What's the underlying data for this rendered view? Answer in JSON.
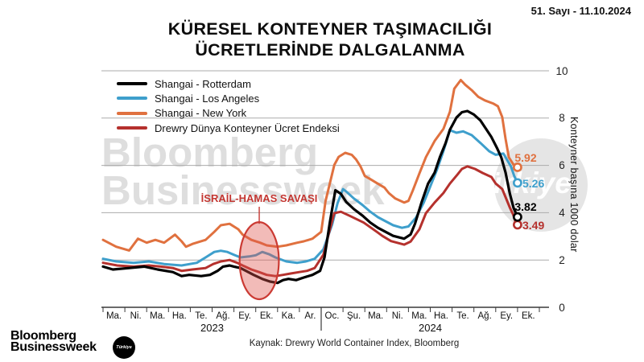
{
  "meta": {
    "issue": "51. Sayı - 11.10.2024"
  },
  "title": {
    "line1": "KÜRESEL KONTEYNER TAŞIMACILIĞI",
    "line2": "ÜCRETLERİNDE DALGALANMA"
  },
  "legend": [
    {
      "label": "Shangai - Rotterdam",
      "color": "#000000"
    },
    {
      "label": "Shangai - Los Angeles",
      "color": "#3E9FCC"
    },
    {
      "label": "Shangai - New York",
      "color": "#E0713F"
    },
    {
      "label": "Drewry Dünya Konteyner Ücret Endeksi",
      "color": "#B5312D"
    }
  ],
  "annotation": {
    "label": "İSRAİL-HAMAS SAVAŞI",
    "color": "#C43732",
    "x_month": 7.16,
    "y_value": 1.97,
    "rx_months": 0.9,
    "ry_values": 1.63
  },
  "y_axis": {
    "label": "Konteyner başına 1000 dolar",
    "ticks": [
      0,
      2,
      4,
      6,
      8,
      10
    ]
  },
  "x_axis": {
    "month_labels": [
      "Ma.",
      "Ni.",
      "Ma.",
      "Ha.",
      "Te.",
      "Ağ.",
      "Ey.",
      "Ek.",
      "Ka.",
      "Ar.",
      "Oc.",
      "Şu.",
      "Ma.",
      "Ni.",
      "Ma.",
      "Ha.",
      "Te.",
      "Ağ.",
      "Ey.",
      "Ek."
    ],
    "years": [
      "2023",
      "2024"
    ]
  },
  "watermark": {
    "line1": "Bloomberg",
    "line2": "Businessweek",
    "circle_text": "Türkiye"
  },
  "footer": {
    "source": "Kaynak: Drewry World Container Index, Bloomberg",
    "logo_line1": "Bloomberg",
    "logo_line2": "Businessweek",
    "logo_badge": "Türkiye"
  },
  "chart_data": {
    "type": "line",
    "x_unit": "months (0 = Mart 2023, 19 = Ekim 2024)",
    "ylim": [
      0,
      10
    ],
    "grid": true,
    "legend_position": "top-left",
    "series": [
      {
        "name": "Shangai - Rotterdam",
        "color": "#000000",
        "end_label": "3.82",
        "points": [
          [
            0,
            1.72
          ],
          [
            0.45,
            1.6
          ],
          [
            1.2,
            1.66
          ],
          [
            1.9,
            1.72
          ],
          [
            2.5,
            1.6
          ],
          [
            3.2,
            1.49
          ],
          [
            3.6,
            1.32
          ],
          [
            3.95,
            1.37
          ],
          [
            4.5,
            1.32
          ],
          [
            4.9,
            1.37
          ],
          [
            5.25,
            1.54
          ],
          [
            5.5,
            1.72
          ],
          [
            5.8,
            1.77
          ],
          [
            6.0,
            1.72
          ],
          [
            6.3,
            1.66
          ],
          [
            6.55,
            1.54
          ],
          [
            6.9,
            1.37
          ],
          [
            7.3,
            1.2
          ],
          [
            7.65,
            1.09
          ],
          [
            8.0,
            1.03
          ],
          [
            8.25,
            1.15
          ],
          [
            8.5,
            1.2
          ],
          [
            8.85,
            1.15
          ],
          [
            9.2,
            1.26
          ],
          [
            9.6,
            1.37
          ],
          [
            9.95,
            1.54
          ],
          [
            10.15,
            2.11
          ],
          [
            10.4,
            3.6
          ],
          [
            10.65,
            4.95
          ],
          [
            10.9,
            4.8
          ],
          [
            11.15,
            4.45
          ],
          [
            11.5,
            4.15
          ],
          [
            11.9,
            3.87
          ],
          [
            12.25,
            3.58
          ],
          [
            12.6,
            3.36
          ],
          [
            12.95,
            3.19
          ],
          [
            13.3,
            3.02
          ],
          [
            13.8,
            2.9
          ],
          [
            14.1,
            3.08
          ],
          [
            14.3,
            3.53
          ],
          [
            14.6,
            4.44
          ],
          [
            14.9,
            5.23
          ],
          [
            15.2,
            5.69
          ],
          [
            15.45,
            6.37
          ],
          [
            15.7,
            6.94
          ],
          [
            15.9,
            7.51
          ],
          [
            16.2,
            8.02
          ],
          [
            16.45,
            8.25
          ],
          [
            16.7,
            8.3
          ],
          [
            17.0,
            8.15
          ],
          [
            17.3,
            7.9
          ],
          [
            17.55,
            7.55
          ],
          [
            17.8,
            7.2
          ],
          [
            18.05,
            6.75
          ],
          [
            18.25,
            6.35
          ],
          [
            18.45,
            5.7
          ],
          [
            18.65,
            4.8
          ],
          [
            18.82,
            4.2
          ],
          [
            19.0,
            3.82
          ]
        ]
      },
      {
        "name": "Shangai - Los Angeles",
        "color": "#3E9FCC",
        "end_label": "5.26",
        "points": [
          [
            0,
            2.05
          ],
          [
            0.6,
            1.94
          ],
          [
            1.4,
            1.88
          ],
          [
            2.1,
            1.94
          ],
          [
            2.8,
            1.83
          ],
          [
            3.6,
            1.77
          ],
          [
            4.3,
            1.88
          ],
          [
            4.7,
            2.11
          ],
          [
            5.1,
            2.34
          ],
          [
            5.4,
            2.39
          ],
          [
            5.7,
            2.34
          ],
          [
            6.0,
            2.22
          ],
          [
            6.3,
            2.11
          ],
          [
            6.7,
            2.15
          ],
          [
            7.0,
            2.2
          ],
          [
            7.3,
            2.34
          ],
          [
            7.6,
            2.25
          ],
          [
            7.9,
            2.11
          ],
          [
            8.4,
            1.94
          ],
          [
            8.9,
            1.88
          ],
          [
            9.3,
            1.94
          ],
          [
            9.7,
            2.05
          ],
          [
            10.1,
            2.45
          ],
          [
            10.5,
            3.5
          ],
          [
            10.75,
            4.4
          ],
          [
            11.0,
            5.0
          ],
          [
            11.15,
            4.89
          ],
          [
            11.5,
            4.6
          ],
          [
            11.9,
            4.32
          ],
          [
            12.25,
            4.04
          ],
          [
            12.6,
            3.81
          ],
          [
            12.95,
            3.64
          ],
          [
            13.3,
            3.47
          ],
          [
            13.7,
            3.36
          ],
          [
            14.0,
            3.42
          ],
          [
            14.35,
            3.8
          ],
          [
            14.7,
            4.43
          ],
          [
            15.0,
            5.11
          ],
          [
            15.3,
            5.8
          ],
          [
            15.6,
            6.6
          ],
          [
            15.9,
            7.49
          ],
          [
            16.2,
            7.38
          ],
          [
            16.5,
            7.44
          ],
          [
            16.9,
            7.28
          ],
          [
            17.3,
            6.95
          ],
          [
            17.7,
            6.6
          ],
          [
            18.0,
            6.45
          ],
          [
            18.35,
            6.5
          ],
          [
            18.7,
            5.95
          ],
          [
            18.85,
            5.55
          ],
          [
            19.0,
            5.26
          ]
        ]
      },
      {
        "name": "Shangai - New York",
        "color": "#E0713F",
        "end_label": "5.92",
        "points": [
          [
            0,
            2.85
          ],
          [
            0.6,
            2.56
          ],
          [
            1.2,
            2.4
          ],
          [
            1.6,
            2.9
          ],
          [
            2.0,
            2.73
          ],
          [
            2.4,
            2.85
          ],
          [
            2.8,
            2.73
          ],
          [
            3.3,
            3.07
          ],
          [
            3.6,
            2.79
          ],
          [
            3.8,
            2.56
          ],
          [
            4.1,
            2.68
          ],
          [
            4.7,
            2.85
          ],
          [
            5.1,
            3.19
          ],
          [
            5.4,
            3.47
          ],
          [
            5.8,
            3.53
          ],
          [
            6.2,
            3.3
          ],
          [
            6.4,
            3.07
          ],
          [
            6.8,
            2.85
          ],
          [
            7.2,
            2.73
          ],
          [
            7.5,
            2.62
          ],
          [
            8.0,
            2.56
          ],
          [
            8.4,
            2.62
          ],
          [
            8.9,
            2.73
          ],
          [
            9.2,
            2.79
          ],
          [
            9.6,
            2.9
          ],
          [
            10.0,
            3.19
          ],
          [
            10.2,
            4.49
          ],
          [
            10.6,
            6.02
          ],
          [
            10.8,
            6.36
          ],
          [
            11.1,
            6.53
          ],
          [
            11.4,
            6.45
          ],
          [
            11.6,
            6.25
          ],
          [
            11.8,
            5.96
          ],
          [
            12.0,
            5.55
          ],
          [
            12.2,
            5.45
          ],
          [
            12.5,
            5.28
          ],
          [
            12.9,
            5.06
          ],
          [
            13.1,
            4.83
          ],
          [
            13.4,
            4.6
          ],
          [
            13.8,
            4.43
          ],
          [
            14.0,
            4.5
          ],
          [
            14.2,
            4.94
          ],
          [
            14.5,
            5.66
          ],
          [
            14.8,
            6.35
          ],
          [
            15.2,
            7.03
          ],
          [
            15.6,
            7.54
          ],
          [
            15.9,
            8.27
          ],
          [
            16.1,
            9.24
          ],
          [
            16.4,
            9.61
          ],
          [
            16.6,
            9.41
          ],
          [
            16.9,
            9.18
          ],
          [
            17.2,
            8.9
          ],
          [
            17.5,
            8.75
          ],
          [
            17.9,
            8.61
          ],
          [
            18.1,
            8.5
          ],
          [
            18.3,
            8.04
          ],
          [
            18.45,
            7.13
          ],
          [
            18.6,
            6.34
          ],
          [
            18.8,
            6.05
          ],
          [
            19.0,
            5.92
          ]
        ]
      },
      {
        "name": "Drewry Dünya Konteyner Ücret Endeksi",
        "color": "#B5312D",
        "end_label": "3.49",
        "points": [
          [
            0,
            1.88
          ],
          [
            0.65,
            1.77
          ],
          [
            1.4,
            1.72
          ],
          [
            2.1,
            1.77
          ],
          [
            2.65,
            1.72
          ],
          [
            3.2,
            1.66
          ],
          [
            3.6,
            1.54
          ],
          [
            4.1,
            1.6
          ],
          [
            4.7,
            1.66
          ],
          [
            5.05,
            1.83
          ],
          [
            5.4,
            1.94
          ],
          [
            5.8,
            2.0
          ],
          [
            6.15,
            1.88
          ],
          [
            6.4,
            1.77
          ],
          [
            6.8,
            1.6
          ],
          [
            7.15,
            1.49
          ],
          [
            7.5,
            1.37
          ],
          [
            7.9,
            1.32
          ],
          [
            8.25,
            1.37
          ],
          [
            8.6,
            1.43
          ],
          [
            9.0,
            1.49
          ],
          [
            9.35,
            1.54
          ],
          [
            9.7,
            1.66
          ],
          [
            10.1,
            2.22
          ],
          [
            10.4,
            3.3
          ],
          [
            10.6,
            3.98
          ],
          [
            10.9,
            4.04
          ],
          [
            11.3,
            3.87
          ],
          [
            11.95,
            3.58
          ],
          [
            12.55,
            3.19
          ],
          [
            12.8,
            3.02
          ],
          [
            13.2,
            2.8
          ],
          [
            13.8,
            2.65
          ],
          [
            14.1,
            2.78
          ],
          [
            14.5,
            3.3
          ],
          [
            14.8,
            3.98
          ],
          [
            15.2,
            4.43
          ],
          [
            15.6,
            4.83
          ],
          [
            15.9,
            5.23
          ],
          [
            16.25,
            5.62
          ],
          [
            16.45,
            5.85
          ],
          [
            16.7,
            5.96
          ],
          [
            17.05,
            5.85
          ],
          [
            17.4,
            5.68
          ],
          [
            17.8,
            5.51
          ],
          [
            18.0,
            5.23
          ],
          [
            18.3,
            5.0
          ],
          [
            18.45,
            4.66
          ],
          [
            18.65,
            4.21
          ],
          [
            18.8,
            3.92
          ],
          [
            18.9,
            3.64
          ],
          [
            19.0,
            3.49
          ]
        ]
      }
    ]
  }
}
